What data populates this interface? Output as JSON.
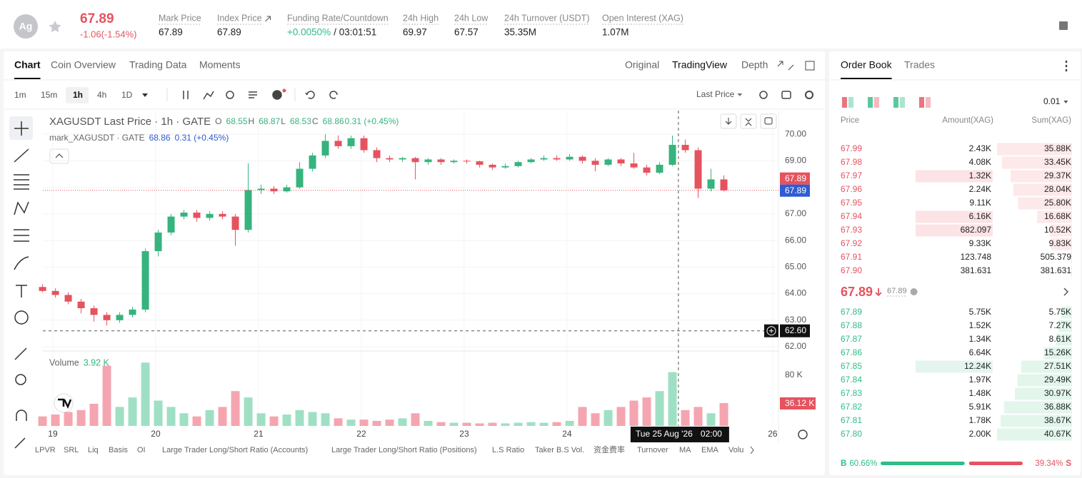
{
  "header": {
    "icon": "Ag",
    "price": "67.89",
    "change": "-1.06(-1.54%)",
    "stats": [
      {
        "label": "Mark Price",
        "value": "67.89"
      },
      {
        "label": "Index Price",
        "value": "67.89"
      },
      {
        "label": "Funding Rate/Countdown",
        "value": "+0.0050%",
        "value_color": "#2ebd85",
        "value2": "/ 03:01:51"
      },
      {
        "label": "24h High",
        "value": "69.97"
      },
      {
        "label": "24h Low",
        "value": "67.57"
      },
      {
        "label": "24h Turnover (USDT)",
        "value": "35.35M"
      },
      {
        "label": "Open Interest (XAG)",
        "value": "1.07M"
      }
    ]
  },
  "chart_tabs": [
    "Chart",
    "Coin Overview",
    "Trading Data",
    "Moments"
  ],
  "view_tabs": [
    "Original",
    "TradingView",
    "Depth"
  ],
  "intervals": [
    "1m",
    "15m",
    "1h",
    "4h",
    "1D"
  ],
  "price_type": "Last Price",
  "chart_data": {
    "type": "candlestick",
    "legend": {
      "title": "XAGUSDT Last Price · 1h · GATE",
      "items": [
        {
          "key": "O",
          "value": "68.55"
        },
        {
          "key": "H",
          "value": "68.87"
        },
        {
          "key": "L",
          "value": "68.53"
        },
        {
          "key": "C",
          "value": "68.86"
        }
      ],
      "change": "0.31 (+0.45%)"
    },
    "mark_legend": {
      "name": "mark_XAGUSDT · GATE",
      "value": "68.86",
      "change": "0.31 (+0.45%)"
    },
    "volume_legend": {
      "name": "Volume",
      "value": "3.92 K"
    },
    "up_color": "#36b37e",
    "down_color": "#e5535f",
    "up_volume_color": "#9fe0c4",
    "down_volume_color": "#f5a5b0",
    "x": [
      18.9,
      19.025,
      19.15,
      19.275,
      19.4,
      19.525,
      19.65,
      19.775,
      19.9,
      20.025,
      20.15,
      20.275,
      20.4,
      20.525,
      20.65,
      20.775,
      20.9,
      21.025,
      21.15,
      21.275,
      21.4,
      21.525,
      21.65,
      21.775,
      21.9,
      22.025,
      22.15,
      22.275,
      22.4,
      22.525,
      22.65,
      22.775,
      22.9,
      23.025,
      23.15,
      23.275,
      23.4,
      23.525,
      23.65,
      23.775,
      23.9,
      24.025,
      24.15,
      24.275,
      24.4,
      24.525,
      24.65,
      24.775,
      24.9,
      25.025,
      25.15,
      25.275,
      25.4,
      25.525
    ],
    "candles": [
      [
        64.25,
        64.35,
        64.05,
        64.1
      ],
      [
        64.1,
        64.2,
        63.85,
        63.95
      ],
      [
        63.95,
        64.05,
        63.6,
        63.7
      ],
      [
        63.7,
        63.8,
        63.25,
        63.45
      ],
      [
        63.45,
        63.55,
        62.95,
        63.2
      ],
      [
        63.2,
        63.3,
        62.8,
        63.0
      ],
      [
        63.0,
        63.3,
        62.9,
        63.2
      ],
      [
        63.2,
        63.5,
        63.1,
        63.4
      ],
      [
        63.4,
        65.7,
        63.3,
        65.6
      ],
      [
        65.6,
        66.4,
        65.4,
        66.3
      ],
      [
        66.3,
        67.0,
        66.2,
        66.9
      ],
      [
        66.9,
        67.15,
        66.8,
        67.05
      ],
      [
        67.05,
        67.15,
        66.7,
        66.85
      ],
      [
        66.85,
        67.1,
        66.75,
        67.0
      ],
      [
        67.0,
        67.1,
        66.8,
        66.9
      ],
      [
        66.9,
        67.0,
        65.8,
        66.4
      ],
      [
        66.4,
        68.9,
        66.3,
        67.9
      ],
      [
        67.9,
        68.1,
        67.75,
        67.95
      ],
      [
        67.95,
        68.05,
        67.75,
        67.85
      ],
      [
        67.85,
        68.1,
        67.8,
        68.0
      ],
      [
        68.0,
        68.95,
        67.95,
        68.7
      ],
      [
        68.7,
        69.3,
        68.6,
        69.2
      ],
      [
        69.2,
        70.0,
        69.1,
        69.75
      ],
      [
        69.75,
        69.95,
        69.45,
        69.55
      ],
      [
        69.55,
        69.95,
        69.45,
        69.85
      ],
      [
        69.85,
        69.95,
        69.3,
        69.4
      ],
      [
        69.4,
        69.5,
        68.95,
        69.1
      ],
      [
        69.1,
        69.2,
        68.95,
        69.05
      ],
      [
        69.05,
        69.15,
        68.95,
        69.1
      ],
      [
        69.1,
        69.15,
        68.3,
        68.95
      ],
      [
        68.95,
        69.1,
        68.85,
        69.05
      ],
      [
        69.05,
        69.1,
        68.85,
        68.95
      ],
      [
        68.95,
        69.05,
        68.9,
        69.0
      ],
      [
        69.0,
        69.05,
        68.9,
        68.98
      ],
      [
        68.98,
        69.0,
        68.75,
        68.85
      ],
      [
        68.85,
        68.9,
        68.65,
        68.75
      ],
      [
        68.75,
        68.9,
        68.7,
        68.8
      ],
      [
        68.8,
        69.0,
        68.75,
        68.95
      ],
      [
        68.95,
        69.1,
        68.9,
        69.05
      ],
      [
        69.05,
        69.2,
        69.0,
        69.1
      ],
      [
        69.1,
        69.2,
        69.0,
        69.05
      ],
      [
        69.05,
        69.25,
        69.0,
        69.15
      ],
      [
        69.15,
        69.2,
        68.9,
        69.0
      ],
      [
        69.0,
        69.1,
        68.6,
        68.85
      ],
      [
        68.85,
        69.1,
        68.8,
        69.05
      ],
      [
        69.05,
        69.1,
        68.8,
        68.9
      ],
      [
        68.9,
        69.3,
        68.7,
        68.75
      ],
      [
        68.75,
        68.85,
        68.45,
        68.55
      ],
      [
        68.55,
        68.95,
        68.5,
        68.85
      ],
      [
        68.85,
        69.95,
        68.8,
        69.6
      ],
      [
        69.6,
        69.8,
        69.3,
        69.4
      ],
      [
        69.4,
        69.5,
        67.6,
        67.95
      ],
      [
        67.95,
        68.7,
        67.85,
        68.3
      ],
      [
        68.3,
        68.45,
        67.85,
        67.89
      ]
    ],
    "volumes": [
      15,
      18,
      22,
      25,
      35,
      95,
      30,
      45,
      100,
      40,
      30,
      20,
      15,
      25,
      30,
      55,
      45,
      20,
      15,
      18,
      25,
      22,
      20,
      12,
      10,
      10,
      8,
      10,
      12,
      20,
      8,
      6,
      5,
      5,
      4,
      5,
      4,
      5,
      6,
      5,
      6,
      8,
      30,
      20,
      25,
      30,
      40,
      45,
      55,
      85,
      25,
      30,
      20,
      36.12
    ],
    "xlim": [
      18.903,
      26.056
    ],
    "xticks": [
      19,
      20,
      21,
      22,
      23,
      24,
      26
    ],
    "ylim": [
      61.84,
      70.89
    ],
    "yticks": [
      {
        "value": 62,
        "label": "62.00"
      },
      {
        "value": 63,
        "label": "63.00"
      },
      {
        "value": 64,
        "label": "64.00"
      },
      {
        "value": 65,
        "label": "65.00"
      },
      {
        "value": 66,
        "label": "66.00"
      },
      {
        "value": 67,
        "label": "67.00"
      },
      {
        "value": 68,
        "label": "68.00"
      },
      {
        "value": 69,
        "label": "69.00"
      },
      {
        "value": 70,
        "label": "70.00"
      }
    ],
    "vlim": [
      0,
      112.7
    ],
    "vticks": [
      {
        "value": 80,
        "label": "80 K"
      }
    ],
    "volume_last": {
      "value": 36.12,
      "label": "36.12 K"
    },
    "last_price": 67.89,
    "mark_price": 67.89,
    "crosshair": {
      "x": 25.083,
      "price": {
        "value": 62.6,
        "label": "62.60"
      },
      "date": "Tue 25 Aug '26",
      "time": "02:00"
    }
  },
  "indicators": [
    "LPVR",
    "SRL",
    "Liq",
    "Basis",
    "OI",
    "Large Trader Long/Short Ratio (Accounts)",
    "Large Trader Long/Short Ratio (Positions)",
    "L.S Ratio",
    "Taker B.S Vol.",
    "资金费率",
    "Turnover",
    "MA",
    "EMA",
    "Volu"
  ],
  "orderbook": {
    "tabs": [
      "Order Book",
      "Trades"
    ],
    "precision": "0.01",
    "headers": [
      "Price",
      "Amount(XAG)",
      "Sum(XAG)"
    ],
    "asks": [
      {
        "price": "67.99",
        "amount": "2.43K",
        "sum": {
          "value": 35880,
          "label": "35.88K"
        }
      },
      {
        "price": "67.98",
        "amount": "4.08K",
        "sum": {
          "value": 33450,
          "label": "33.45K"
        }
      },
      {
        "price": "67.97",
        "amount": "1.32K",
        "sum": {
          "value": 29370,
          "label": "29.37K"
        },
        "highlight": true
      },
      {
        "price": "67.96",
        "amount": "2.24K",
        "sum": {
          "value": 28040,
          "label": "28.04K"
        }
      },
      {
        "price": "67.95",
        "amount": "9.11K",
        "sum": {
          "value": 25800,
          "label": "25.80K"
        }
      },
      {
        "price": "67.94",
        "amount": "6.16K",
        "sum": {
          "value": 16680,
          "label": "16.68K"
        },
        "highlight": true
      },
      {
        "price": "67.93",
        "amount": "682.097",
        "sum": {
          "value": 10520,
          "label": "10.52K"
        },
        "highlight": true
      },
      {
        "price": "67.92",
        "amount": "9.33K",
        "sum": {
          "value": 9830,
          "label": "9.83K"
        }
      },
      {
        "price": "67.91",
        "amount": "123.748",
        "sum": 505.379
      },
      {
        "price": "67.90",
        "amount": "381.631",
        "sum": 381.631
      }
    ],
    "mid": {
      "price": "67.89",
      "mark": "67.89"
    },
    "bids": [
      {
        "price": "67.89",
        "amount": "5.75K",
        "sum": {
          "value": 5750,
          "label": "5.75K"
        }
      },
      {
        "price": "67.88",
        "amount": "1.52K",
        "sum": {
          "value": 7270,
          "label": "7.27K"
        }
      },
      {
        "price": "67.87",
        "amount": "1.34K",
        "sum": {
          "value": 8610,
          "label": "8.61K"
        }
      },
      {
        "price": "67.86",
        "amount": "6.64K",
        "sum": {
          "value": 15260,
          "label": "15.26K"
        }
      },
      {
        "price": "67.85",
        "amount": "12.24K",
        "sum": {
          "value": 27510,
          "label": "27.51K"
        },
        "highlight": true
      },
      {
        "price": "67.84",
        "amount": "1.97K",
        "sum": {
          "value": 29490,
          "label": "29.49K"
        }
      },
      {
        "price": "67.83",
        "amount": "1.48K",
        "sum": {
          "value": 30970,
          "label": "30.97K"
        }
      },
      {
        "price": "67.82",
        "amount": "5.91K",
        "sum": {
          "value": 36880,
          "label": "36.88K"
        }
      },
      {
        "price": "67.81",
        "amount": "1.78K",
        "sum": {
          "value": 38670,
          "label": "38.67K"
        }
      },
      {
        "price": "67.80",
        "amount": "2.00K",
        "sum": {
          "value": 40670,
          "label": "40.67K"
        }
      }
    ],
    "ratio": {
      "buy_letter": "B",
      "buy": {
        "value": 60.66,
        "label": "60.66%"
      },
      "sell": {
        "value": 39.34,
        "label": "39.34%"
      },
      "sell_letter": "S"
    }
  }
}
